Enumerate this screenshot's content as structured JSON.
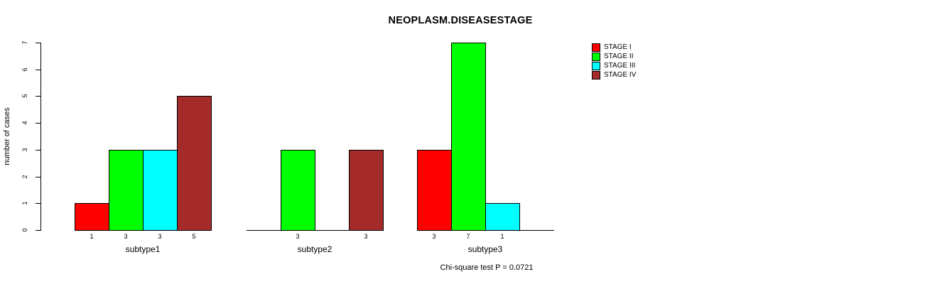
{
  "chart_data": {
    "type": "bar",
    "title": "NEOPLASM.DISEASESTAGE",
    "ylabel": "number of cases",
    "footnote": "Chi-square test P = 0.0721",
    "categories": [
      "subtype1",
      "subtype2",
      "subtype3"
    ],
    "series": [
      {
        "name": "STAGE I",
        "color": "#FF0000",
        "values": [
          1,
          0,
          3
        ]
      },
      {
        "name": "STAGE II",
        "color": "#00FF00",
        "values": [
          3,
          3,
          7
        ]
      },
      {
        "name": "STAGE III",
        "color": "#00FFFF",
        "values": [
          3,
          0,
          1
        ]
      },
      {
        "name": "STAGE IV",
        "color": "#A52A2A",
        "values": [
          5,
          3,
          0
        ]
      }
    ],
    "yticks": [
      0,
      1,
      2,
      3,
      4,
      5,
      6,
      7
    ],
    "ylim": [
      0,
      7
    ],
    "grid": false,
    "legend_position": "right",
    "value_label_rule": "value shown under each bar with value > 0"
  }
}
